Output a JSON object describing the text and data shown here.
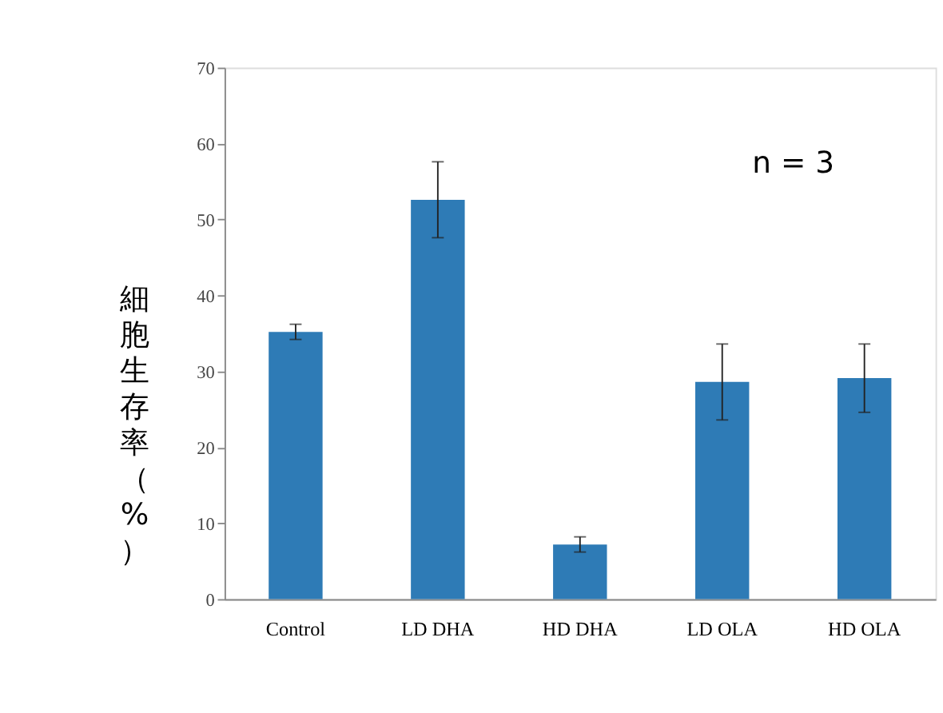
{
  "chart_data": {
    "type": "bar",
    "ylabel": "細胞生存率（%）",
    "categories": [
      "Control",
      "LD DHA",
      "HD DHA",
      "LD OLA",
      "HD OLA"
    ],
    "values": [
      35.2,
      52.6,
      7.2,
      28.6,
      29.1
    ],
    "errors": [
      1,
      5,
      1,
      5,
      4.5
    ],
    "color": "#2e7bb6",
    "ylim": [
      0,
      70
    ],
    "yticks": [
      0,
      10,
      20,
      30,
      40,
      50,
      60,
      70
    ],
    "grid": false,
    "annotations": [
      "n = 3"
    ]
  }
}
